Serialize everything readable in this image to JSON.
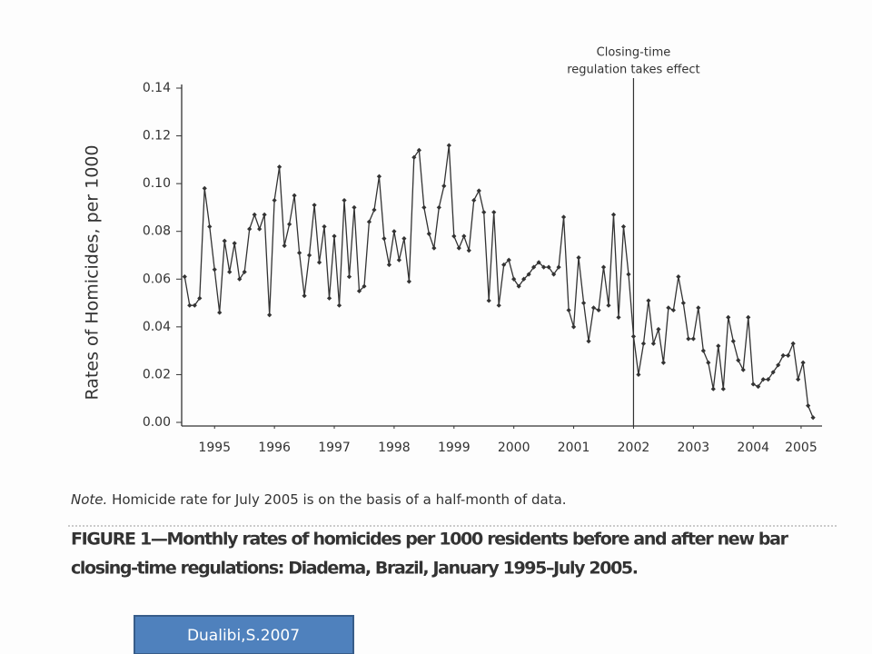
{
  "chart_data": {
    "type": "line",
    "y_label": "Rates of Homicides, per 1000",
    "annotation": {
      "lines": [
        "Closing-time",
        "regulation takes effect"
      ],
      "x": 2002.5
    },
    "note": {
      "lead": "Note.",
      "text": "Homicide rate for July 2005 is on the basis of a half-month of data."
    },
    "caption": [
      "FIGURE 1—Monthly rates of homicides per 1000 residents before and after new bar",
      "closing-time regulations: Diadema, Brazil, January 1995–July 2005."
    ],
    "x": [
      1995,
      1995.083,
      1995.167,
      1995.25,
      1995.333,
      1995.417,
      1995.5,
      1995.583,
      1995.667,
      1995.75,
      1995.833,
      1995.917,
      1996,
      1996.083,
      1996.167,
      1996.25,
      1996.333,
      1996.417,
      1996.5,
      1996.583,
      1996.667,
      1996.75,
      1996.833,
      1996.917,
      1997,
      1997.083,
      1997.167,
      1997.25,
      1997.333,
      1997.417,
      1997.5,
      1997.583,
      1997.667,
      1997.75,
      1997.833,
      1997.917,
      1998,
      1998.083,
      1998.167,
      1998.25,
      1998.333,
      1998.417,
      1998.5,
      1998.583,
      1998.667,
      1998.75,
      1998.833,
      1998.917,
      1999,
      1999.083,
      1999.167,
      1999.25,
      1999.333,
      1999.417,
      1999.5,
      1999.583,
      1999.667,
      1999.75,
      1999.833,
      1999.917,
      2000,
      2000.083,
      2000.167,
      2000.25,
      2000.333,
      2000.417,
      2000.5,
      2000.583,
      2000.667,
      2000.75,
      2000.833,
      2000.917,
      2001,
      2001.083,
      2001.167,
      2001.25,
      2001.333,
      2001.417,
      2001.5,
      2001.583,
      2001.667,
      2001.75,
      2001.833,
      2001.917,
      2002,
      2002.083,
      2002.167,
      2002.25,
      2002.333,
      2002.417,
      2002.5,
      2002.583,
      2002.667,
      2002.75,
      2002.833,
      2002.917,
      2003,
      2003.083,
      2003.167,
      2003.25,
      2003.333,
      2003.417,
      2003.5,
      2003.583,
      2003.667,
      2003.75,
      2003.833,
      2003.917,
      2004,
      2004.083,
      2004.167,
      2004.25,
      2004.333,
      2004.417,
      2004.5,
      2004.583,
      2004.667,
      2004.75,
      2004.833,
      2004.917,
      2005,
      2005.083,
      2005.167,
      2005.25,
      2005.333,
      2005.417,
      2005.5
    ],
    "series": [
      {
        "color": "#333333",
        "values": [
          0.061,
          0.049,
          0.049,
          0.052,
          0.098,
          0.082,
          0.064,
          0.046,
          0.076,
          0.063,
          0.075,
          0.06,
          0.063,
          0.081,
          0.087,
          0.081,
          0.087,
          0.045,
          0.093,
          0.107,
          0.074,
          0.083,
          0.095,
          0.071,
          0.053,
          0.07,
          0.091,
          0.067,
          0.082,
          0.052,
          0.078,
          0.049,
          0.093,
          0.061,
          0.09,
          0.055,
          0.057,
          0.084,
          0.089,
          0.103,
          0.077,
          0.066,
          0.08,
          0.068,
          0.077,
          0.059,
          0.111,
          0.114,
          0.09,
          0.079,
          0.073,
          0.09,
          0.099,
          0.116,
          0.078,
          0.073,
          0.078,
          0.072,
          0.093,
          0.097,
          0.088,
          0.051,
          0.088,
          0.049,
          0.066,
          0.068,
          0.06,
          0.057,
          0.06,
          0.062,
          0.065,
          0.067,
          0.065,
          0.065,
          0.062,
          0.065,
          0.086,
          0.047,
          0.04,
          0.069,
          0.05,
          0.034,
          0.048,
          0.047,
          0.065,
          0.049,
          0.087,
          0.044,
          0.082,
          0.062,
          0.036,
          0.02,
          0.033,
          0.051,
          0.033,
          0.039,
          0.025,
          0.048,
          0.047,
          0.061,
          0.05,
          0.035,
          0.035,
          0.048,
          0.03,
          0.025,
          0.014,
          0.032,
          0.014,
          0.044,
          0.034,
          0.026,
          0.022,
          0.044,
          0.016,
          0.015,
          0.018,
          0.018,
          0.021,
          0.024,
          0.028,
          0.028,
          0.033,
          0.018,
          0.025,
          0.007,
          0.002
        ]
      }
    ],
    "xlim": [
      1994.95,
      2005.65
    ],
    "xticks": [
      {
        "value": 1995.5,
        "label": "1995"
      },
      {
        "value": 1996.5,
        "label": "1996"
      },
      {
        "value": 1997.5,
        "label": "1997"
      },
      {
        "value": 1998.5,
        "label": "1998"
      },
      {
        "value": 1999.5,
        "label": "1999"
      },
      {
        "value": 2000.5,
        "label": "2000"
      },
      {
        "value": 2001.5,
        "label": "2001"
      },
      {
        "value": 2002.5,
        "label": "2002"
      },
      {
        "value": 2003.5,
        "label": "2003"
      },
      {
        "value": 2004.5,
        "label": "2004"
      },
      {
        "value": 2005.3,
        "label": "2005"
      }
    ],
    "ylim": [
      0,
      0.14
    ],
    "yticks": [
      {
        "value": 0,
        "label": "0.00"
      },
      0.02,
      0.04,
      0.06,
      0.08,
      {
        "value": 0.1,
        "label": "0.10"
      },
      0.12,
      0.14
    ],
    "grid": false
  },
  "button": {
    "label": "Dualibi,S.2007"
  }
}
